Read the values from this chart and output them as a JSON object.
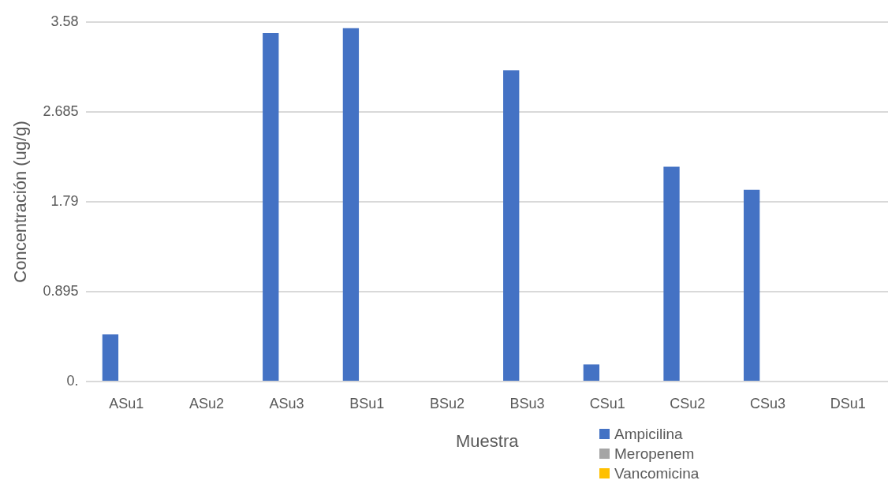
{
  "chart_data": {
    "type": "bar",
    "xlabel": "Muestra",
    "ylabel": "Concentración (ug/g)",
    "categories": [
      "ASu1",
      "ASu2",
      "ASu3",
      "BSu1",
      "BSu2",
      "BSu3",
      "CSu1",
      "CSu2",
      "CSu3",
      "DSu1"
    ],
    "series": [
      {
        "name": "Ampicilina",
        "color": "#4472c4",
        "values": [
          0.47,
          0,
          3.47,
          3.52,
          0,
          3.1,
          0.17,
          2.14,
          1.91,
          0
        ]
      },
      {
        "name": "Meropenem",
        "color": "#a5a5a5",
        "values": [
          0,
          0,
          0,
          0,
          0,
          0,
          0,
          0,
          0,
          0
        ]
      },
      {
        "name": "Vancomicina",
        "color": "#ffc000",
        "values": [
          0,
          0,
          0,
          0,
          0,
          0,
          0,
          0,
          0,
          0
        ]
      }
    ],
    "ylim": [
      0,
      3.58
    ],
    "yticks": [
      {
        "value": 0,
        "label": "0."
      },
      0.895,
      1.79,
      2.685,
      3.58
    ],
    "grid": "y",
    "legend": "bottom"
  }
}
